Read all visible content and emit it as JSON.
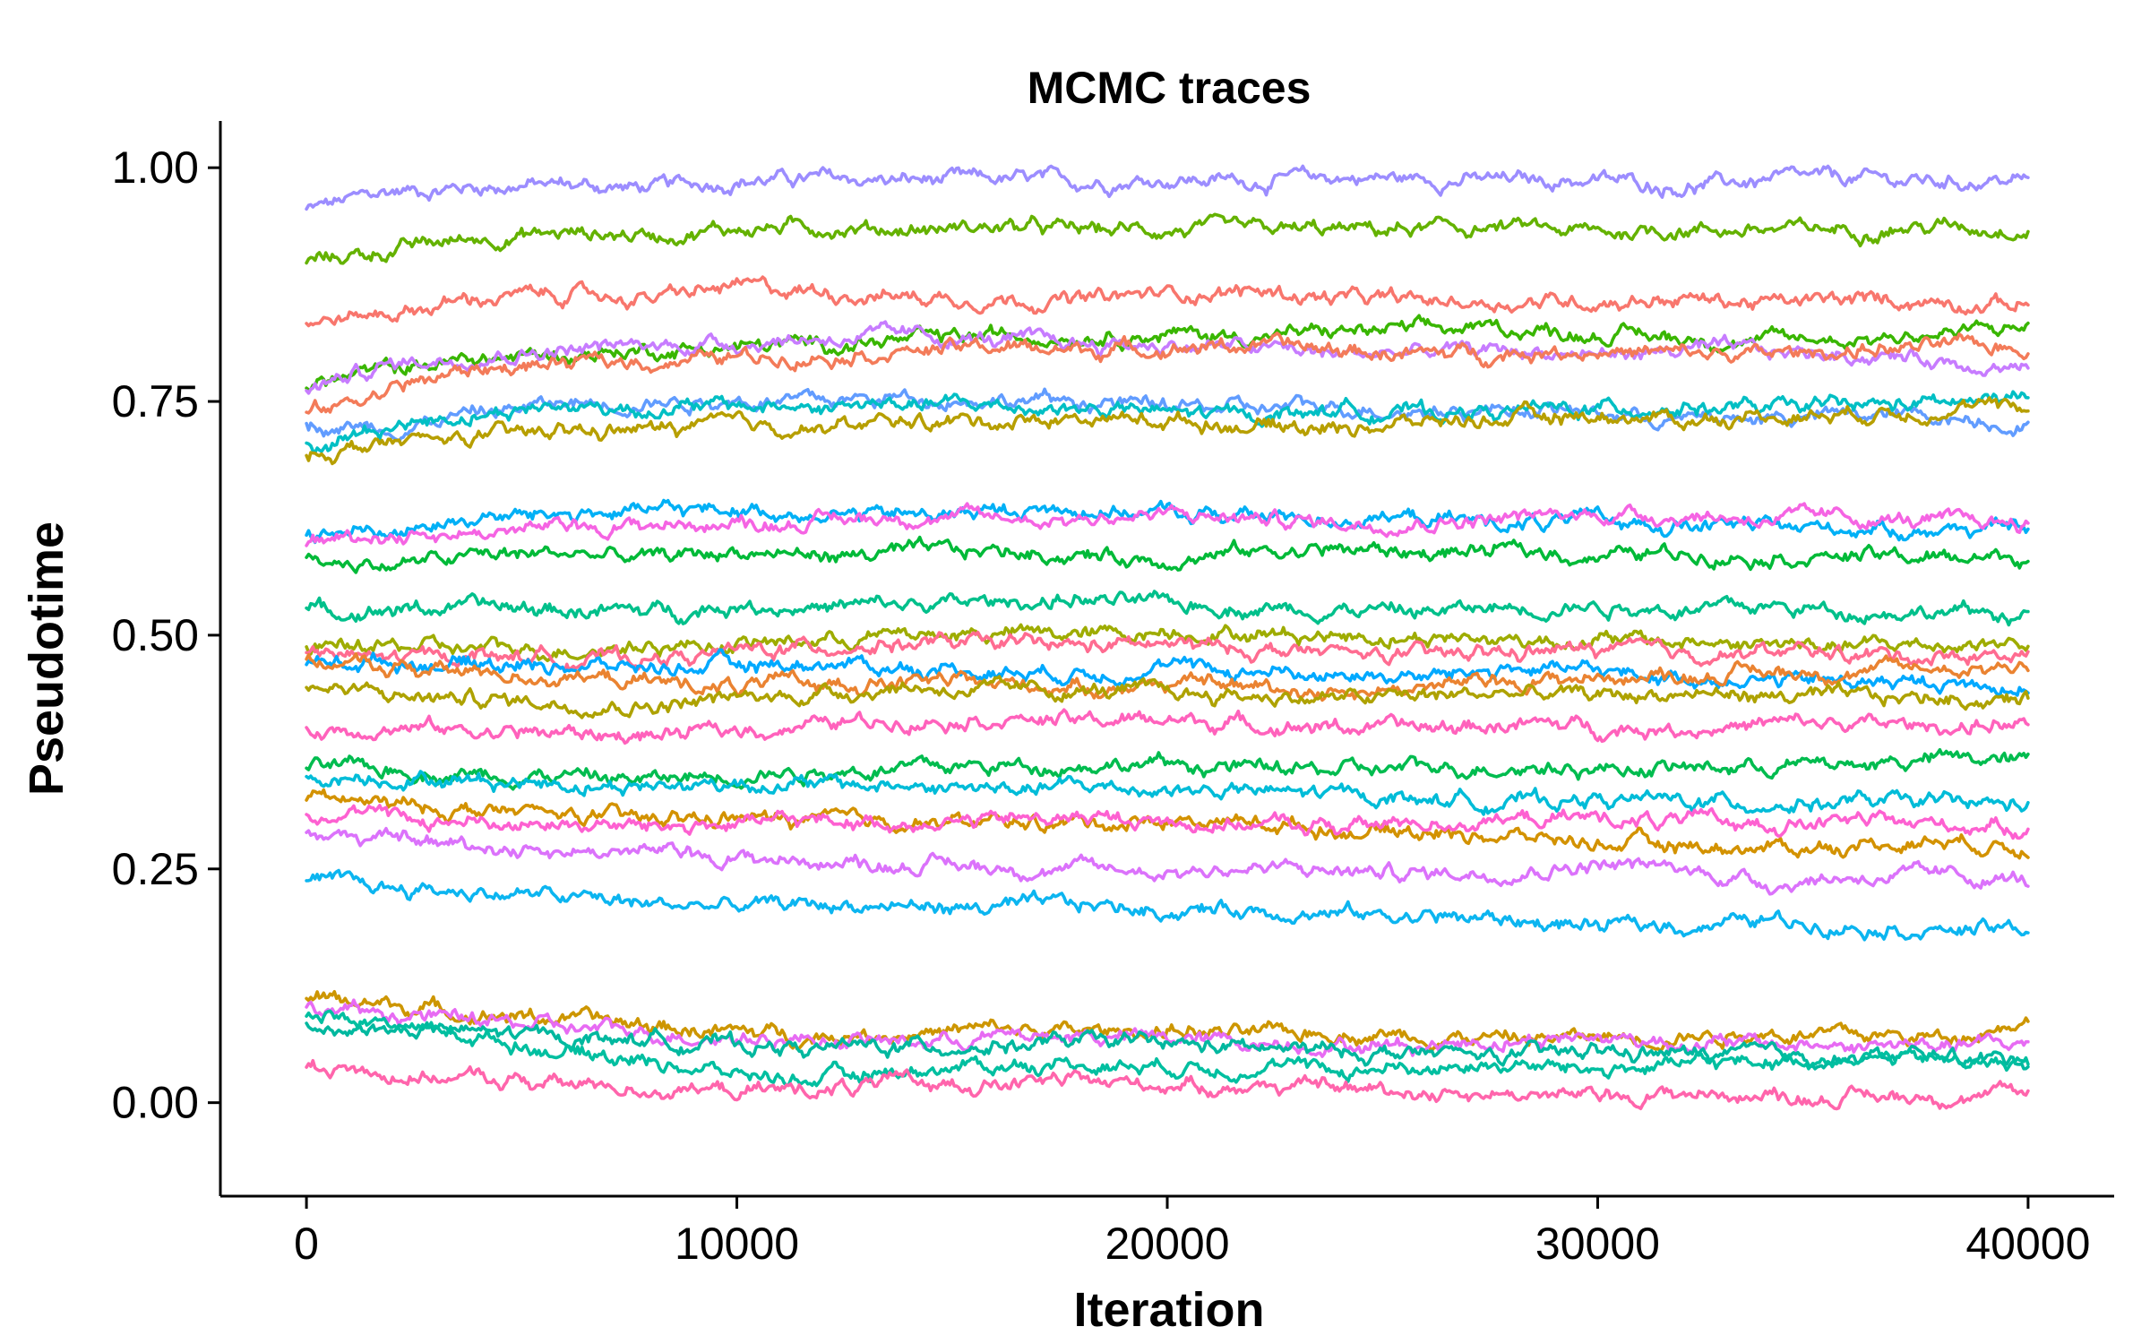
{
  "chart_data": {
    "type": "line",
    "title": "MCMC traces",
    "xlabel": "Iteration",
    "ylabel": "Pseudotime",
    "xlim": [
      -2000,
      42000
    ],
    "ylim": [
      -0.1,
      1.05
    ],
    "xticks": [
      0,
      10000,
      20000,
      30000,
      40000
    ],
    "xtick_labels": [
      "0",
      "10000",
      "20000",
      "30000",
      "40000"
    ],
    "yticks": [
      0.0,
      0.25,
      0.5,
      0.75,
      1.0
    ],
    "ytick_labels": [
      "0.00",
      "0.25",
      "0.50",
      "0.75",
      "1.00"
    ],
    "grid": false,
    "legend": "none",
    "noise_amplitude": 0.006,
    "x": [
      0,
      2000,
      4000,
      6000,
      8000,
      10000,
      12000,
      14000,
      16000,
      18000,
      20000,
      22000,
      24000,
      26000,
      28000,
      30000,
      32000,
      34000,
      36000,
      38000,
      40000
    ],
    "series": [
      {
        "color": "#9C8DFF",
        "values": [
          0.955,
          0.975,
          0.98,
          0.982,
          0.978,
          0.987,
          0.988,
          0.986,
          0.987,
          0.985,
          0.988,
          0.986,
          0.99,
          0.988,
          0.986,
          0.987,
          0.98,
          0.987,
          0.988,
          0.985,
          0.987
        ]
      },
      {
        "color": "#64B200",
        "values": [
          0.9,
          0.912,
          0.925,
          0.93,
          0.928,
          0.935,
          0.937,
          0.934,
          0.937,
          0.933,
          0.934,
          0.932,
          0.933,
          0.934,
          0.936,
          0.93,
          0.935,
          0.933,
          0.935,
          0.937,
          0.935
        ]
      },
      {
        "color": "#F8766D",
        "values": [
          0.835,
          0.845,
          0.86,
          0.865,
          0.86,
          0.872,
          0.868,
          0.862,
          0.86,
          0.858,
          0.866,
          0.868,
          0.86,
          0.857,
          0.856,
          0.858,
          0.86,
          0.855,
          0.858,
          0.858,
          0.853
        ]
      },
      {
        "color": "#39B600",
        "values": [
          0.768,
          0.785,
          0.795,
          0.8,
          0.805,
          0.808,
          0.812,
          0.815,
          0.82,
          0.822,
          0.822,
          0.82,
          0.825,
          0.826,
          0.828,
          0.822,
          0.818,
          0.815,
          0.818,
          0.822,
          0.83
        ]
      },
      {
        "color": "#C77CFF",
        "values": [
          0.765,
          0.79,
          0.8,
          0.805,
          0.81,
          0.813,
          0.818,
          0.82,
          0.815,
          0.812,
          0.81,
          0.808,
          0.8,
          0.803,
          0.805,
          0.8,
          0.805,
          0.803,
          0.8,
          0.795,
          0.787
        ]
      },
      {
        "color": "#F37B59",
        "values": [
          0.735,
          0.765,
          0.785,
          0.79,
          0.793,
          0.797,
          0.8,
          0.805,
          0.808,
          0.805,
          0.808,
          0.81,
          0.805,
          0.8,
          0.803,
          0.805,
          0.8,
          0.8,
          0.805,
          0.808,
          0.808
        ]
      },
      {
        "color": "#619CFF",
        "values": [
          0.725,
          0.722,
          0.738,
          0.748,
          0.75,
          0.752,
          0.75,
          0.755,
          0.752,
          0.75,
          0.745,
          0.742,
          0.745,
          0.74,
          0.743,
          0.738,
          0.73,
          0.733,
          0.735,
          0.735,
          0.725
        ]
      },
      {
        "color": "#00BFC4",
        "values": [
          0.7,
          0.725,
          0.738,
          0.745,
          0.742,
          0.745,
          0.743,
          0.748,
          0.745,
          0.742,
          0.738,
          0.735,
          0.742,
          0.738,
          0.74,
          0.742,
          0.745,
          0.742,
          0.745,
          0.748,
          0.752
        ]
      },
      {
        "color": "#B79F00",
        "values": [
          0.695,
          0.705,
          0.712,
          0.718,
          0.72,
          0.725,
          0.722,
          0.728,
          0.73,
          0.732,
          0.73,
          0.725,
          0.722,
          0.728,
          0.732,
          0.735,
          0.73,
          0.735,
          0.738,
          0.742,
          0.742
        ]
      },
      {
        "color": "#00B0F6",
        "values": [
          0.61,
          0.612,
          0.625,
          0.63,
          0.632,
          0.635,
          0.63,
          0.628,
          0.632,
          0.635,
          0.63,
          0.627,
          0.625,
          0.625,
          0.62,
          0.622,
          0.618,
          0.615,
          0.615,
          0.614,
          0.612
        ]
      },
      {
        "color": "#F564E3",
        "values": [
          0.6,
          0.608,
          0.61,
          0.615,
          0.618,
          0.62,
          0.622,
          0.628,
          0.625,
          0.625,
          0.628,
          0.625,
          0.62,
          0.622,
          0.625,
          0.63,
          0.628,
          0.625,
          0.625,
          0.62,
          0.622
        ]
      },
      {
        "color": "#00BA38",
        "values": [
          0.58,
          0.575,
          0.585,
          0.588,
          0.582,
          0.59,
          0.585,
          0.588,
          0.59,
          0.585,
          0.582,
          0.59,
          0.592,
          0.588,
          0.59,
          0.585,
          0.588,
          0.585,
          0.585,
          0.582,
          0.585
        ]
      },
      {
        "color": "#00C08B",
        "values": [
          0.525,
          0.528,
          0.53,
          0.527,
          0.525,
          0.532,
          0.53,
          0.532,
          0.535,
          0.538,
          0.532,
          0.53,
          0.528,
          0.525,
          0.53,
          0.532,
          0.528,
          0.53,
          0.526,
          0.525,
          0.522
        ]
      },
      {
        "color": "#9EAC00",
        "values": [
          0.485,
          0.488,
          0.485,
          0.485,
          0.49,
          0.49,
          0.495,
          0.5,
          0.502,
          0.5,
          0.505,
          0.502,
          0.5,
          0.498,
          0.495,
          0.495,
          0.492,
          0.49,
          0.488,
          0.49,
          0.492
        ]
      },
      {
        "color": "#FF6C91",
        "values": [
          0.478,
          0.475,
          0.48,
          0.476,
          0.475,
          0.482,
          0.488,
          0.492,
          0.49,
          0.488,
          0.49,
          0.485,
          0.48,
          0.478,
          0.482,
          0.485,
          0.48,
          0.482,
          0.48,
          0.478,
          0.48
        ]
      },
      {
        "color": "#00A9FF",
        "values": [
          0.47,
          0.472,
          0.47,
          0.468,
          0.465,
          0.468,
          0.47,
          0.465,
          0.462,
          0.46,
          0.465,
          0.462,
          0.458,
          0.455,
          0.465,
          0.46,
          0.455,
          0.452,
          0.45,
          0.448,
          0.445
        ]
      },
      {
        "color": "#EA8331",
        "values": [
          0.47,
          0.465,
          0.46,
          0.455,
          0.45,
          0.445,
          0.448,
          0.45,
          0.448,
          0.445,
          0.448,
          0.445,
          0.44,
          0.445,
          0.45,
          0.455,
          0.458,
          0.46,
          0.462,
          0.465,
          0.468
        ]
      },
      {
        "color": "#AEA200",
        "values": [
          0.445,
          0.435,
          0.432,
          0.428,
          0.425,
          0.432,
          0.438,
          0.445,
          0.44,
          0.44,
          0.438,
          0.435,
          0.432,
          0.435,
          0.438,
          0.435,
          0.438,
          0.435,
          0.432,
          0.433,
          0.43
        ]
      },
      {
        "color": "#FF62BC",
        "values": [
          0.4,
          0.402,
          0.398,
          0.395,
          0.392,
          0.398,
          0.405,
          0.41,
          0.412,
          0.408,
          0.41,
          0.405,
          0.402,
          0.4,
          0.405,
          0.402,
          0.4,
          0.405,
          0.405,
          0.402,
          0.405
        ]
      },
      {
        "color": "#00BC4F",
        "values": [
          0.358,
          0.355,
          0.352,
          0.35,
          0.345,
          0.352,
          0.355,
          0.358,
          0.36,
          0.362,
          0.362,
          0.358,
          0.355,
          0.358,
          0.36,
          0.358,
          0.358,
          0.36,
          0.362,
          0.368,
          0.365
        ]
      },
      {
        "color": "#00BCD8",
        "values": [
          0.35,
          0.348,
          0.345,
          0.342,
          0.338,
          0.342,
          0.34,
          0.338,
          0.335,
          0.338,
          0.335,
          0.332,
          0.33,
          0.325,
          0.322,
          0.325,
          0.322,
          0.32,
          0.322,
          0.32,
          0.318
        ]
      },
      {
        "color": "#D39200",
        "values": [
          0.328,
          0.318,
          0.312,
          0.308,
          0.302,
          0.305,
          0.3,
          0.302,
          0.298,
          0.3,
          0.302,
          0.3,
          0.292,
          0.29,
          0.285,
          0.278,
          0.275,
          0.272,
          0.275,
          0.282,
          0.272
        ]
      },
      {
        "color": "#FD61D1",
        "values": [
          0.312,
          0.305,
          0.3,
          0.298,
          0.295,
          0.298,
          0.302,
          0.3,
          0.302,
          0.305,
          0.3,
          0.298,
          0.295,
          0.3,
          0.302,
          0.305,
          0.3,
          0.298,
          0.3,
          0.298,
          0.295
        ]
      },
      {
        "color": "#DB72FB",
        "values": [
          0.29,
          0.28,
          0.275,
          0.27,
          0.268,
          0.262,
          0.258,
          0.255,
          0.252,
          0.25,
          0.248,
          0.25,
          0.248,
          0.245,
          0.248,
          0.255,
          0.25,
          0.235,
          0.242,
          0.242,
          0.238
        ]
      },
      {
        "color": "#0CB5F0",
        "values": [
          0.235,
          0.23,
          0.225,
          0.22,
          0.212,
          0.21,
          0.212,
          0.21,
          0.208,
          0.212,
          0.205,
          0.208,
          0.202,
          0.2,
          0.195,
          0.188,
          0.19,
          0.195,
          0.19,
          0.185,
          0.185
        ]
      },
      {
        "color": "#CD9600",
        "values": [
          0.112,
          0.105,
          0.095,
          0.09,
          0.082,
          0.075,
          0.072,
          0.075,
          0.078,
          0.075,
          0.078,
          0.072,
          0.075,
          0.072,
          0.068,
          0.07,
          0.072,
          0.075,
          0.072,
          0.07,
          0.09
        ]
      },
      {
        "color": "#E76BF3",
        "values": [
          0.1,
          0.095,
          0.088,
          0.08,
          0.075,
          0.07,
          0.068,
          0.065,
          0.07,
          0.072,
          0.068,
          0.065,
          0.062,
          0.062,
          0.068,
          0.07,
          0.065,
          0.062,
          0.06,
          0.062,
          0.062
        ]
      },
      {
        "color": "#00B89F",
        "values": [
          0.082,
          0.078,
          0.075,
          0.07,
          0.068,
          0.062,
          0.058,
          0.06,
          0.062,
          0.065,
          0.062,
          0.058,
          0.055,
          0.052,
          0.05,
          0.055,
          0.052,
          0.05,
          0.048,
          0.05,
          0.045
        ]
      },
      {
        "color": "#00BFA0",
        "values": [
          0.095,
          0.085,
          0.07,
          0.055,
          0.045,
          0.03,
          0.025,
          0.035,
          0.04,
          0.042,
          0.04,
          0.038,
          0.035,
          0.038,
          0.04,
          0.035,
          0.04,
          0.045,
          0.05,
          0.045,
          0.04
        ]
      },
      {
        "color": "#FF65AC",
        "values": [
          0.04,
          0.03,
          0.025,
          0.02,
          0.015,
          0.012,
          0.015,
          0.02,
          0.02,
          0.022,
          0.02,
          0.018,
          0.015,
          0.012,
          0.01,
          0.005,
          0.01,
          0.008,
          0.005,
          0.008,
          0.008
        ]
      }
    ]
  }
}
